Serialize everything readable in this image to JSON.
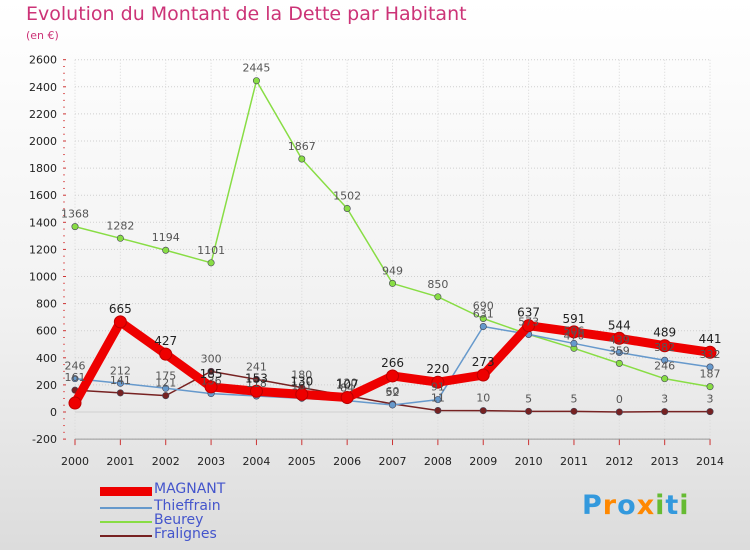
{
  "title": "Evolution du Montant de la Dette par Habitant",
  "subtitle": "(en €)",
  "logo": "Proxiti",
  "chart_data": {
    "type": "line",
    "title": "Evolution du Montant de la Dette par Habitant",
    "ylabel": "(en €)",
    "xlabel": "",
    "x": [
      "2000",
      "2001",
      "2002",
      "2003",
      "2004",
      "2005",
      "2006",
      "2007",
      "2008",
      "2009",
      "2010",
      "2011",
      "2012",
      "2013",
      "2014"
    ],
    "ylim": [
      -200,
      2600
    ],
    "yticks": [
      -200,
      0,
      200,
      400,
      600,
      800,
      1000,
      1200,
      1400,
      1600,
      1800,
      2000,
      2200,
      2400,
      2600
    ],
    "series": [
      {
        "name": "MAGNANT",
        "color": "#ee0000",
        "values": [
          66,
          665,
          427,
          185,
          153,
          130,
          107,
          266,
          220,
          273,
          637,
          591,
          544,
          489,
          441
        ],
        "labels": [
          "",
          "665",
          "427",
          "185",
          "153",
          "130",
          "107",
          "266",
          "220",
          "273",
          "637",
          "591",
          "544",
          "489",
          "441"
        ]
      },
      {
        "name": "Thieffrain",
        "color": "#6699cc",
        "values": [
          246,
          212,
          175,
          136,
          118,
          101,
          84,
          52,
          91,
          631,
          573,
          506,
          439,
          382,
          332
        ],
        "labels": [
          "246",
          "212",
          "175",
          "136",
          "118",
          "101",
          "84",
          "52",
          "91",
          "631",
          "573",
          "506",
          "439",
          "382",
          "332"
        ]
      },
      {
        "name": "Beurey",
        "color": "#88dd44",
        "values": [
          1368,
          1282,
          1194,
          1101,
          2445,
          1867,
          1502,
          949,
          850,
          690,
          573,
          470,
          359,
          246,
          187
        ],
        "labels": [
          "1368",
          "1282",
          "1194",
          "1101",
          "2445",
          "1867",
          "1502",
          "949",
          "850",
          "690",
          "",
          "470",
          "359",
          "246",
          "187"
        ]
      },
      {
        "name": "Fralignes",
        "color": "#772222",
        "values": [
          161,
          141,
          121,
          300,
          241,
          180,
          120,
          60,
          11,
          10,
          5,
          5,
          0,
          3,
          3
        ],
        "labels": [
          "161",
          "141",
          "121",
          "300",
          "241",
          "180",
          "120",
          "60",
          "11",
          "10",
          "5",
          "5",
          "0",
          "3",
          "3"
        ]
      }
    ],
    "legend": [
      "MAGNANT",
      "Thieffrain",
      "Beurey",
      "Fralignes"
    ],
    "legend_position": "bottom-left",
    "grid": true
  }
}
